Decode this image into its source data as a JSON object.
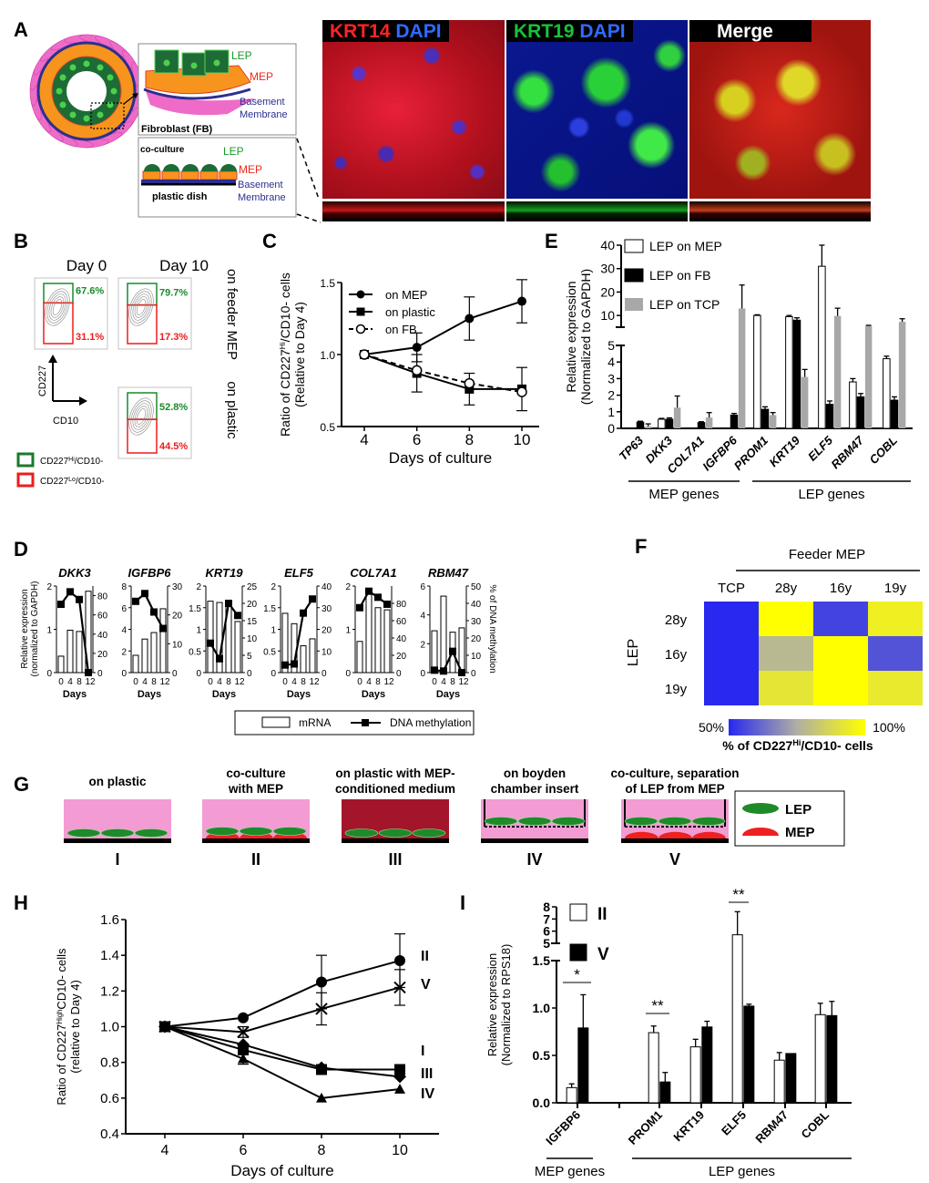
{
  "figure_labels": {
    "A": "A",
    "B": "B",
    "C": "C",
    "D": "D",
    "E": "E",
    "F": "F",
    "G": "G",
    "H": "H",
    "I": "I"
  },
  "panel_a": {
    "schematic": {
      "lep": "LEP",
      "mep": "MEP",
      "basement": "Basement",
      "membrane": "Membrane",
      "fibroblast": "Fibroblast (FB)",
      "co_culture": "co-culture",
      "plastic_dish": "plastic dish"
    },
    "images": [
      {
        "name": "krt14-dapi",
        "parts": [
          {
            "text": "KRT14",
            "color": "#ff2424"
          },
          {
            "text": "DAPI",
            "color": "#2f6bff"
          }
        ]
      },
      {
        "name": "krt19-dapi",
        "parts": [
          {
            "text": "KRT19",
            "color": "#19c23a"
          },
          {
            "text": "DAPI",
            "color": "#2f6bff"
          }
        ]
      },
      {
        "name": "merge",
        "parts": [
          {
            "text": "Merge",
            "color": "#ffffff"
          }
        ]
      }
    ]
  },
  "panel_b": {
    "day0": "Day 0",
    "day10": "Day 10",
    "row1": "on feeder MEP",
    "row2": "on plastic",
    "plots": [
      {
        "hi": "67.6%",
        "lo": "31.1%"
      },
      {
        "hi": "79.7%",
        "lo": "17.3%"
      },
      {
        "hi": "52.8%",
        "lo": "44.5%"
      }
    ],
    "y_axis": "CD227",
    "x_axis": "CD10",
    "legend": [
      {
        "base": "CD227",
        "sup": "Hi",
        "suffix": "/CD10-",
        "color": "#1a7a2a"
      },
      {
        "base": "CD227",
        "sup": "Lo",
        "suffix": "/CD10-",
        "color": "#ee1c1c"
      }
    ],
    "hi_color": "#1a8a2a",
    "lo_color": "#ee1c1c"
  },
  "chart_data": [
    {
      "panel": "C",
      "type": "line",
      "x": [
        4,
        6,
        8,
        10
      ],
      "xlabel": "Days of culture",
      "ylabel_parts": [
        "Ratio of CD227",
        "Hi",
        "/CD10- cells"
      ],
      "ylabel2": "(Relative to Day 4)",
      "ylim": [
        0.5,
        1.5
      ],
      "yticks": [
        "0.5",
        "1.0",
        "1.5"
      ],
      "xticks": [
        "4",
        "6",
        "8",
        "10"
      ],
      "series": [
        {
          "name": "on MEP",
          "values": [
            1.0,
            1.05,
            1.25,
            1.37
          ],
          "err": [
            0,
            0.1,
            0.15,
            0.15
          ],
          "marker": "circle",
          "dash": false
        },
        {
          "name": "on plastic",
          "values": [
            1.0,
            0.87,
            0.76,
            0.76
          ],
          "err": [
            0,
            0.13,
            0.11,
            0.15
          ],
          "marker": "square",
          "dash": false
        },
        {
          "name": "on FB",
          "values": [
            1.0,
            0.89,
            0.8,
            0.74
          ],
          "err": [
            0,
            0.02,
            0.02,
            0.02
          ],
          "marker": "open-circle",
          "dash": true
        }
      ]
    },
    {
      "panel": "E",
      "type": "bar",
      "categories": [
        "TP63",
        "DKK3",
        "COL7A1",
        "IGFBP6",
        "PROM1",
        "KRT19",
        "ELF5",
        "RBM47",
        "COBL"
      ],
      "ylabel": "Relative expression",
      "ylabel2": "(Normalized to GAPDH)",
      "ylim_lower": [
        0,
        5
      ],
      "ylim_upper": [
        5,
        40
      ],
      "yticks_lower": [
        "0",
        "1",
        "2",
        "3",
        "4",
        "5"
      ],
      "yticks_upper": [
        "10",
        "20",
        "30",
        "40"
      ],
      "series": [
        {
          "name": "LEP on MEP",
          "color": "#ffffff",
          "values": [
            0.02,
            0.55,
            0.02,
            0.02,
            10,
            9.5,
            31,
            2.8,
            4.2
          ],
          "err": [
            0,
            0.05,
            0,
            0,
            0.3,
            0.5,
            9,
            0.2,
            0.15
          ]
        },
        {
          "name": "LEP on FB",
          "color": "#000000",
          "values": [
            0.38,
            0.55,
            0.35,
            0.8,
            1.15,
            8,
            1.45,
            1.9,
            1.7
          ],
          "err": [
            0.05,
            0.08,
            0.05,
            0.1,
            0.15,
            1,
            0.2,
            0.2,
            0.2
          ]
        },
        {
          "name": "LEP on TCP",
          "color": "#a8a8a8",
          "values": [
            0.12,
            1.25,
            0.65,
            13,
            0.8,
            3.1,
            9.8,
            5.5,
            7.3
          ],
          "err": [
            0.15,
            0.7,
            0.3,
            10,
            0.15,
            0.45,
            3.3,
            0.3,
            1.3
          ]
        }
      ],
      "groups": [
        {
          "label": "MEP genes",
          "span": [
            0,
            3
          ]
        },
        {
          "label": "LEP genes",
          "span": [
            4,
            8
          ]
        }
      ]
    },
    {
      "panel": "D",
      "type": "bar",
      "days": [
        "0",
        "4",
        "8",
        "12"
      ],
      "xlabel": "Days",
      "ylabel_left": "Relative expression",
      "ylabel_left2": "(normalized to GAPDH)",
      "ylabel_right": "% of DNA methylation",
      "legend": {
        "mrna": "mRNA",
        "methylation": "DNA methylation"
      },
      "subplots": [
        {
          "gene": "DKK3",
          "lmax": 2,
          "lticks": [
            "0",
            "1",
            "2"
          ],
          "rmax": 90,
          "rticks": [
            "0",
            "20",
            "40",
            "60",
            "80"
          ],
          "mrna": [
            0.38,
            0.98,
            0.95,
            1.88
          ],
          "methylation": [
            71,
            84,
            76,
            0
          ]
        },
        {
          "gene": "IGFBP6",
          "lmax": 8,
          "lticks": [
            "0",
            "2",
            "4",
            "6",
            "8"
          ],
          "rmax": 30,
          "rticks": [
            "0",
            "10",
            "20",
            "30"
          ],
          "mrna": [
            1.6,
            3.1,
            3.7,
            5.9
          ],
          "methylation": [
            24.7,
            27.4,
            21,
            15.3
          ]
        },
        {
          "gene": "KRT19",
          "lmax": 2,
          "lticks": [
            "0",
            "0.5",
            "1",
            "1.5",
            "2"
          ],
          "rmax": 25,
          "rticks": [
            "0",
            "5",
            "10",
            "15",
            "20",
            "25"
          ],
          "mrna": [
            1.65,
            1.62,
            1.6,
            1.18
          ],
          "methylation": [
            8.5,
            4,
            20,
            16.5
          ]
        },
        {
          "gene": "ELF5",
          "lmax": 2,
          "lticks": [
            "0",
            "0.5",
            "1",
            "1.5",
            "2"
          ],
          "rmax": 40,
          "rticks": [
            "0",
            "10",
            "20",
            "30",
            "40"
          ],
          "mrna": [
            1.37,
            1.13,
            0.62,
            0.78
          ],
          "methylation": [
            3.5,
            4,
            27.5,
            34
          ]
        },
        {
          "gene": "COL7A1",
          "lmax": 2,
          "lticks": [
            "0",
            "1",
            "2"
          ],
          "rmax": 100,
          "rticks": [
            "0",
            "20",
            "40",
            "60",
            "80"
          ],
          "mrna": [
            0.72,
            1.9,
            1.5,
            1.45
          ],
          "methylation": [
            75,
            94,
            87,
            79
          ]
        },
        {
          "gene": "RBM47",
          "lmax": 6,
          "lticks": [
            "0",
            "2",
            "4",
            "6"
          ],
          "rmax": 50,
          "rticks": [
            "0",
            "10",
            "20",
            "30",
            "40",
            "50"
          ],
          "mrna": [
            2.9,
            5.3,
            2.8,
            3.1
          ],
          "methylation": [
            1.4,
            0.9,
            12.3,
            0
          ]
        }
      ]
    },
    {
      "panel": "F",
      "type": "heatmap",
      "title": "Feeder MEP",
      "columns": [
        "TCP",
        "28y",
        "16y",
        "19y"
      ],
      "row_title": "LEP",
      "rows": [
        "28y",
        "16y",
        "19y"
      ],
      "values": [
        [
          50,
          100,
          55,
          95
        ],
        [
          50,
          78,
          100,
          58
        ],
        [
          50,
          92,
          100,
          93
        ]
      ],
      "scale": {
        "min_label": "50%",
        "max_label": "100%",
        "min": 50,
        "max": 100
      },
      "scale_label_parts": [
        "% of CD227",
        "Hi",
        "/CD10- cells"
      ]
    },
    {
      "panel": "H",
      "type": "line",
      "x": [
        4,
        6,
        8,
        10
      ],
      "xlabel": "Days of culture",
      "ylabel_parts": [
        "Ratio of CD227",
        "High",
        "CD10- cells"
      ],
      "ylabel2": "(relative to Day 4)",
      "ylim": [
        0.4,
        1.6
      ],
      "yticks": [
        "0.4",
        "0.6",
        "0.8",
        "1.0",
        "1.2",
        "1.4",
        "1.6"
      ],
      "xticks": [
        "4",
        "6",
        "8",
        "10"
      ],
      "series": [
        {
          "name": "II",
          "values": [
            1.0,
            1.05,
            1.25,
            1.37
          ],
          "err": [
            0,
            0.01,
            0.15,
            0.15
          ],
          "marker": "circle"
        },
        {
          "name": "V",
          "values": [
            1.0,
            0.97,
            1.1,
            1.22
          ],
          "err": [
            0,
            0.03,
            0.09,
            0.1
          ],
          "marker": "cross"
        },
        {
          "name": "I",
          "values": [
            1.0,
            0.9,
            0.77,
            0.72
          ],
          "err": [
            0,
            0.02,
            0.01,
            0.01
          ],
          "marker": "diamond"
        },
        {
          "name": "III",
          "values": [
            1.0,
            0.87,
            0.76,
            0.76
          ],
          "err": [
            0,
            0.02,
            0.01,
            0.01
          ],
          "marker": "square"
        },
        {
          "name": "IV",
          "values": [
            1.0,
            0.82,
            0.6,
            0.65
          ],
          "err": [
            0,
            0.03,
            0.01,
            0.02
          ],
          "marker": "triangle"
        }
      ]
    },
    {
      "panel": "I",
      "type": "bar",
      "categories": [
        "IGFBP6",
        "PROM1",
        "KRT19",
        "ELF5",
        "RBM47",
        "COBL"
      ],
      "ylabel": "Relative expression",
      "ylabel2": "(Normalized to RPS18)",
      "ylim_lower": [
        0,
        1.5
      ],
      "ylim_upper": [
        5,
        8
      ],
      "yticks_lower": [
        "0.0",
        "0.5",
        "1.0",
        "1.5"
      ],
      "yticks_upper": [
        "5",
        "6",
        "7",
        "8"
      ],
      "series": [
        {
          "name": "II",
          "color": "#ffffff",
          "values": [
            0.16,
            0.74,
            0.59,
            5.7,
            0.45,
            0.93
          ],
          "err": [
            0.04,
            0.07,
            0.08,
            1.9,
            0.08,
            0.12
          ]
        },
        {
          "name": "V",
          "color": "#000000",
          "values": [
            0.79,
            0.22,
            0.8,
            1.02,
            0.52,
            0.92
          ],
          "err": [
            0.35,
            0.1,
            0.06,
            0.02,
            0.005,
            0.15
          ]
        }
      ],
      "significance": [
        {
          "category": "IGFBP6",
          "label": "*"
        },
        {
          "category": "PROM1",
          "label": "**"
        },
        {
          "category": "ELF5",
          "label": "**"
        }
      ],
      "groups": [
        {
          "label": "MEP genes",
          "span": [
            0,
            0
          ]
        },
        {
          "label": "LEP genes",
          "span": [
            1,
            5
          ]
        }
      ]
    }
  ],
  "panel_g": {
    "conditions": [
      {
        "lines": [
          "on plastic"
        ],
        "numeral": "I"
      },
      {
        "lines": [
          "co-culture",
          "with MEP"
        ],
        "numeral": "II"
      },
      {
        "lines": [
          "on plastic with MEP-",
          "conditioned medium"
        ],
        "numeral": "III"
      },
      {
        "lines": [
          "on boyden",
          "chamber insert"
        ],
        "numeral": "IV"
      },
      {
        "lines": [
          "co-culture, separation",
          "of LEP from MEP"
        ],
        "numeral": "V"
      }
    ],
    "legend": {
      "lep": "LEP",
      "mep": "MEP"
    },
    "colors": {
      "medium": "#f39bd3",
      "conditioned": "#a3152a",
      "lep": "#1f8a2a",
      "mep": "#ee2020"
    }
  }
}
